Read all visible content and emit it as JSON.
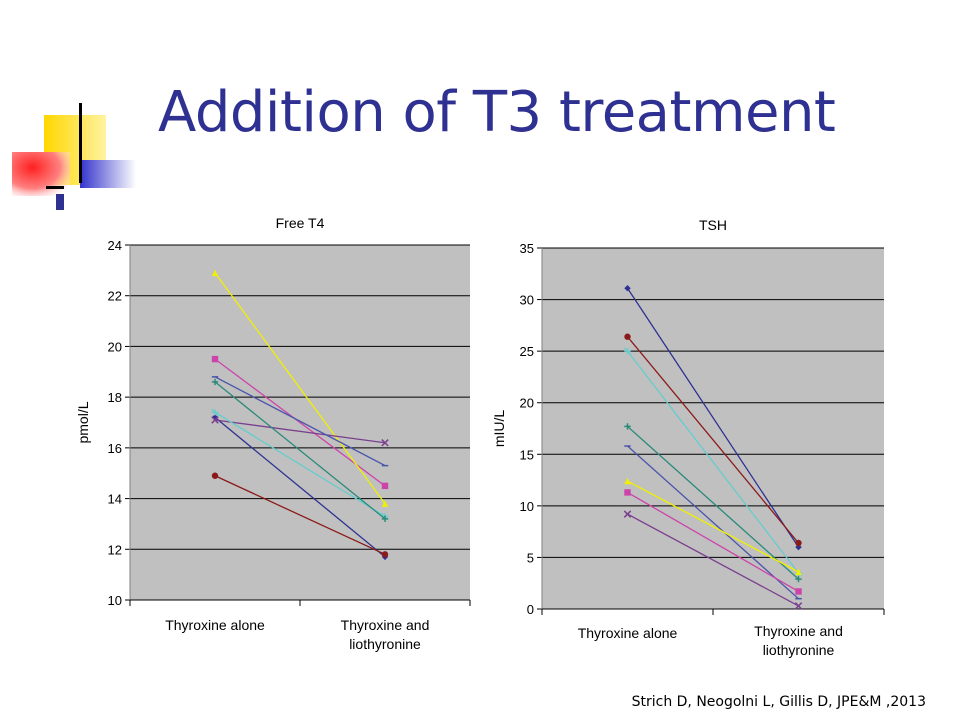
{
  "slide": {
    "title": "Addition of T3 treatment",
    "citation": "Strich D, Neogolni L, Gillis D, JPE&M ,2013"
  },
  "colors": {
    "title": "#2e3192",
    "plot_bg": "#c0c0c0",
    "grid": "#000000"
  },
  "chart_data": [
    {
      "type": "line",
      "title": "Free T4",
      "xlabel": "",
      "ylabel": "pmol/L",
      "categories": [
        "Thyroxine alone",
        "Thyroxine and liothyronine"
      ],
      "yticks": [
        "10",
        "12",
        "14",
        "16",
        "18",
        "20",
        "22",
        "24"
      ],
      "ylim": [
        10,
        24
      ],
      "grid": true,
      "series": [
        {
          "values": [
            17.2,
            11.7
          ],
          "color": "#2e3192",
          "marker": "diamond"
        },
        {
          "values": [
            19.5,
            14.5
          ],
          "color": "#cc44aa",
          "marker": "square"
        },
        {
          "values": [
            22.9,
            13.8
          ],
          "color": "#f0f000",
          "marker": "triangle"
        },
        {
          "values": [
            17.1,
            16.2
          ],
          "color": "#7b3f8f",
          "marker": "x"
        },
        {
          "values": [
            17.4,
            13.3
          ],
          "color": "#66cccc",
          "marker": "star"
        },
        {
          "values": [
            14.9,
            11.8
          ],
          "color": "#8b1a1a",
          "marker": "circle"
        },
        {
          "values": [
            18.6,
            13.2
          ],
          "color": "#2a8a7a",
          "marker": "plus"
        },
        {
          "values": [
            18.8,
            15.3
          ],
          "color": "#4a55aa",
          "marker": "dash"
        }
      ]
    },
    {
      "type": "line",
      "title": "TSH",
      "xlabel": "",
      "ylabel": "mIU/L",
      "categories": [
        "Thyroxine alone",
        "Thyroxine and liothyronine"
      ],
      "yticks": [
        "0",
        "5",
        "10",
        "15",
        "20",
        "25",
        "30",
        "35"
      ],
      "ylim": [
        0,
        35
      ],
      "grid": true,
      "series": [
        {
          "values": [
            31.1,
            6.0
          ],
          "color": "#2e3192",
          "marker": "diamond"
        },
        {
          "values": [
            26.4,
            6.4
          ],
          "color": "#8b1a1a",
          "marker": "circle"
        },
        {
          "values": [
            25.0,
            3.5
          ],
          "color": "#66cccc",
          "marker": "star"
        },
        {
          "values": [
            17.7,
            2.9
          ],
          "color": "#2a8a7a",
          "marker": "plus"
        },
        {
          "values": [
            15.8,
            1.0
          ],
          "color": "#4a55aa",
          "marker": "dash"
        },
        {
          "values": [
            12.4,
            3.6
          ],
          "color": "#f0f000",
          "marker": "triangle"
        },
        {
          "values": [
            11.3,
            1.7
          ],
          "color": "#cc44aa",
          "marker": "square"
        },
        {
          "values": [
            9.2,
            0.3
          ],
          "color": "#7b3f8f",
          "marker": "x"
        }
      ]
    }
  ]
}
